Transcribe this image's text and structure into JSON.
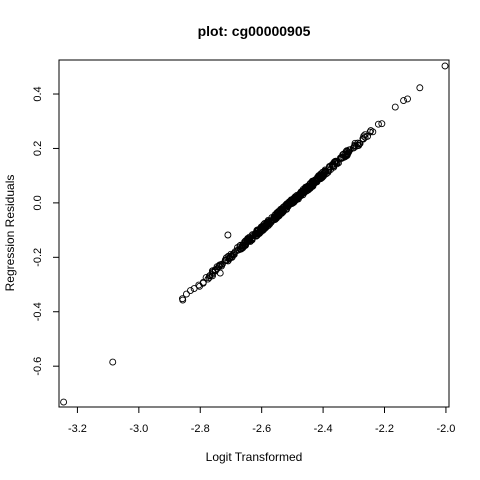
{
  "chart_data": {
    "type": "scatter",
    "title": "plot: cg00000905",
    "xlabel": "Logit Transformed",
    "ylabel": "Regression Residuals",
    "xlim": [
      -3.26,
      -1.99
    ],
    "ylim": [
      -0.75,
      0.525
    ],
    "xticks": [
      -3.2,
      -3.0,
      -2.8,
      -2.6,
      -2.4,
      -2.2,
      -2.0
    ],
    "yticks": [
      -0.6,
      -0.4,
      -0.2,
      0.0,
      0.2,
      0.4
    ],
    "xtick_labels": [
      "-3.2",
      "-3.0",
      "-2.8",
      "-2.6",
      "-2.4",
      "-2.2",
      "-2.0"
    ],
    "ytick_labels": [
      "-0.6",
      "-0.4",
      "-0.2",
      "0.0",
      "0.2",
      "0.4"
    ],
    "grid": false,
    "marker": "open-circle",
    "line_trend": {
      "x_start": -2.86,
      "x_end": -2.135,
      "slope": 1.0,
      "intercept_at_x": -2.505,
      "y_at_intercept": 0.0,
      "n_points": 420
    },
    "points": [
      [
        -3.245,
        -0.732
      ],
      [
        -3.085,
        -0.585
      ],
      [
        -2.71,
        -0.118
      ],
      [
        -2.003,
        0.503
      ],
      [
        -2.085,
        0.423
      ],
      [
        -2.125,
        0.382
      ],
      [
        -2.138,
        0.376
      ],
      [
        -2.165,
        0.352
      ],
      [
        -2.858,
        -0.352
      ],
      [
        -2.857,
        -0.357
      ],
      [
        -2.845,
        -0.335
      ],
      [
        -2.832,
        -0.322
      ],
      [
        -2.82,
        -0.315
      ],
      [
        -2.805,
        -0.302
      ],
      [
        -2.79,
        -0.292
      ],
      [
        -2.775,
        -0.28
      ],
      [
        -2.76,
        -0.268
      ],
      [
        -2.752,
        -0.25
      ],
      [
        -2.745,
        -0.242
      ],
      [
        -2.735,
        -0.258
      ],
      [
        -2.728,
        -0.225
      ],
      [
        -2.715,
        -0.212
      ],
      [
        -2.705,
        -0.205
      ],
      [
        -2.69,
        -0.186
      ],
      [
        -2.68,
        -0.175
      ],
      [
        -2.665,
        -0.163
      ],
      [
        -2.65,
        -0.148
      ],
      [
        -2.64,
        -0.14
      ],
      [
        -2.63,
        -0.128
      ],
      [
        -2.618,
        -0.112
      ]
    ]
  }
}
